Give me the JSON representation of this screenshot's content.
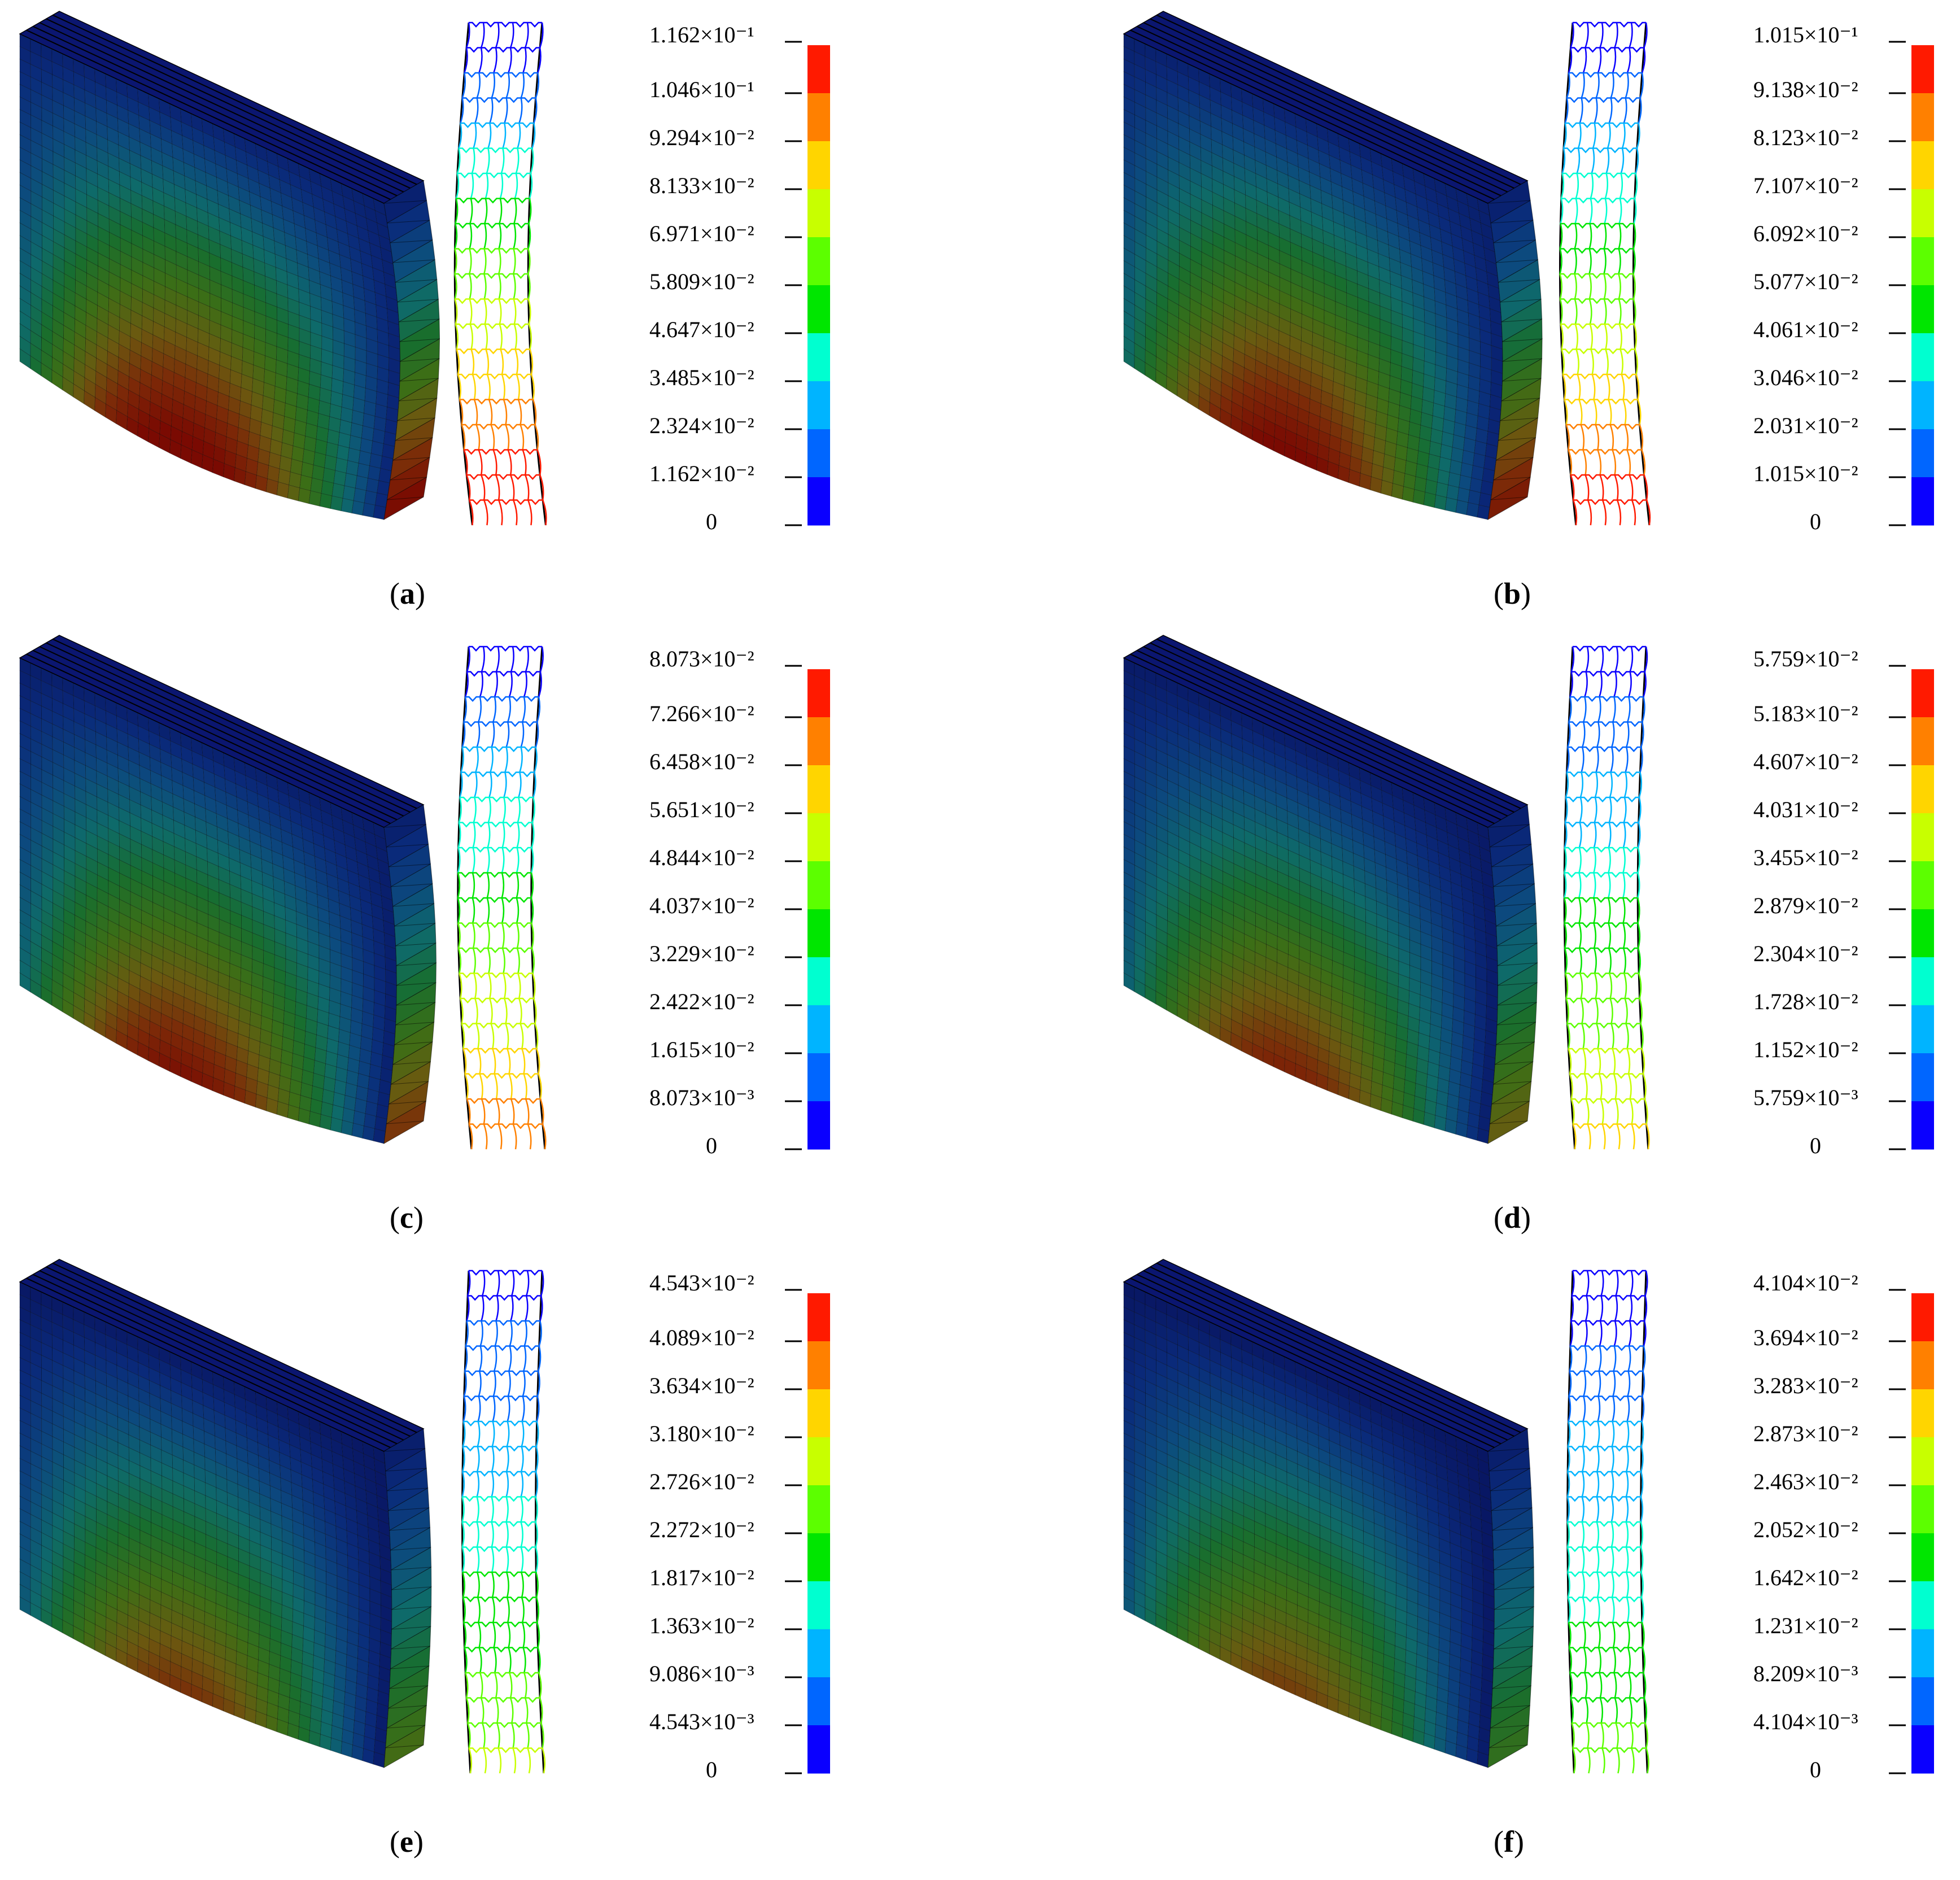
{
  "colors": {
    "legend": [
      "#0a00ff",
      "#0066ff",
      "#00b4ff",
      "#00ffd0",
      "#00e600",
      "#5cff00",
      "#c8ff00",
      "#ffd500",
      "#ff8000",
      "#ff1a00"
    ],
    "slab_base": "#0a1b6e"
  },
  "panels": [
    {
      "id": "a",
      "caption": "a",
      "labels": [
        "1.162×10⁻¹",
        "1.046×10⁻¹",
        "9.294×10⁻²",
        "8.133×10⁻²",
        "6.971×10⁻²",
        "5.809×10⁻²",
        "4.647×10⁻²",
        "3.485×10⁻²",
        "2.324×10⁻²",
        "1.162×10⁻²",
        "0"
      ],
      "deflection_level": 0.95
    },
    {
      "id": "b",
      "caption": "b",
      "labels": [
        "1.015×10⁻¹",
        "9.138×10⁻²",
        "8.123×10⁻²",
        "7.107×10⁻²",
        "6.092×10⁻²",
        "5.077×10⁻²",
        "4.061×10⁻²",
        "3.046×10⁻²",
        "2.031×10⁻²",
        "1.015×10⁻²",
        "0"
      ],
      "deflection_level": 0.85
    },
    {
      "id": "c",
      "caption": "c",
      "labels": [
        "8.073×10⁻²",
        "7.266×10⁻²",
        "6.458×10⁻²",
        "5.651×10⁻²",
        "4.844×10⁻²",
        "4.037×10⁻²",
        "3.229×10⁻²",
        "2.422×10⁻²",
        "1.615×10⁻²",
        "8.073×10⁻³",
        "0"
      ],
      "deflection_level": 0.7
    },
    {
      "id": "d",
      "caption": "d",
      "labels": [
        "5.759×10⁻²",
        "5.183×10⁻²",
        "4.607×10⁻²",
        "4.031×10⁻²",
        "3.455×10⁻²",
        "2.879×10⁻²",
        "2.304×10⁻²",
        "1.728×10⁻²",
        "1.152×10⁻²",
        "5.759×10⁻³",
        "0"
      ],
      "deflection_level": 0.5
    },
    {
      "id": "e",
      "caption": "e",
      "labels": [
        "4.543×10⁻²",
        "4.089×10⁻²",
        "3.634×10⁻²",
        "3.180×10⁻²",
        "2.726×10⁻²",
        "2.272×10⁻²",
        "1.817×10⁻²",
        "1.363×10⁻²",
        "9.086×10⁻³",
        "4.543×10⁻³",
        "0"
      ],
      "deflection_level": 0.35
    },
    {
      "id": "f",
      "caption": "f",
      "labels": [
        "4.104×10⁻²",
        "3.694×10⁻²",
        "3.283×10⁻²",
        "2.873×10⁻²",
        "2.463×10⁻²",
        "2.052×10⁻²",
        "1.642×10⁻²",
        "1.231×10⁻²",
        "8.209×10⁻³",
        "4.104×10⁻³",
        "0"
      ],
      "deflection_level": 0.25
    }
  ]
}
